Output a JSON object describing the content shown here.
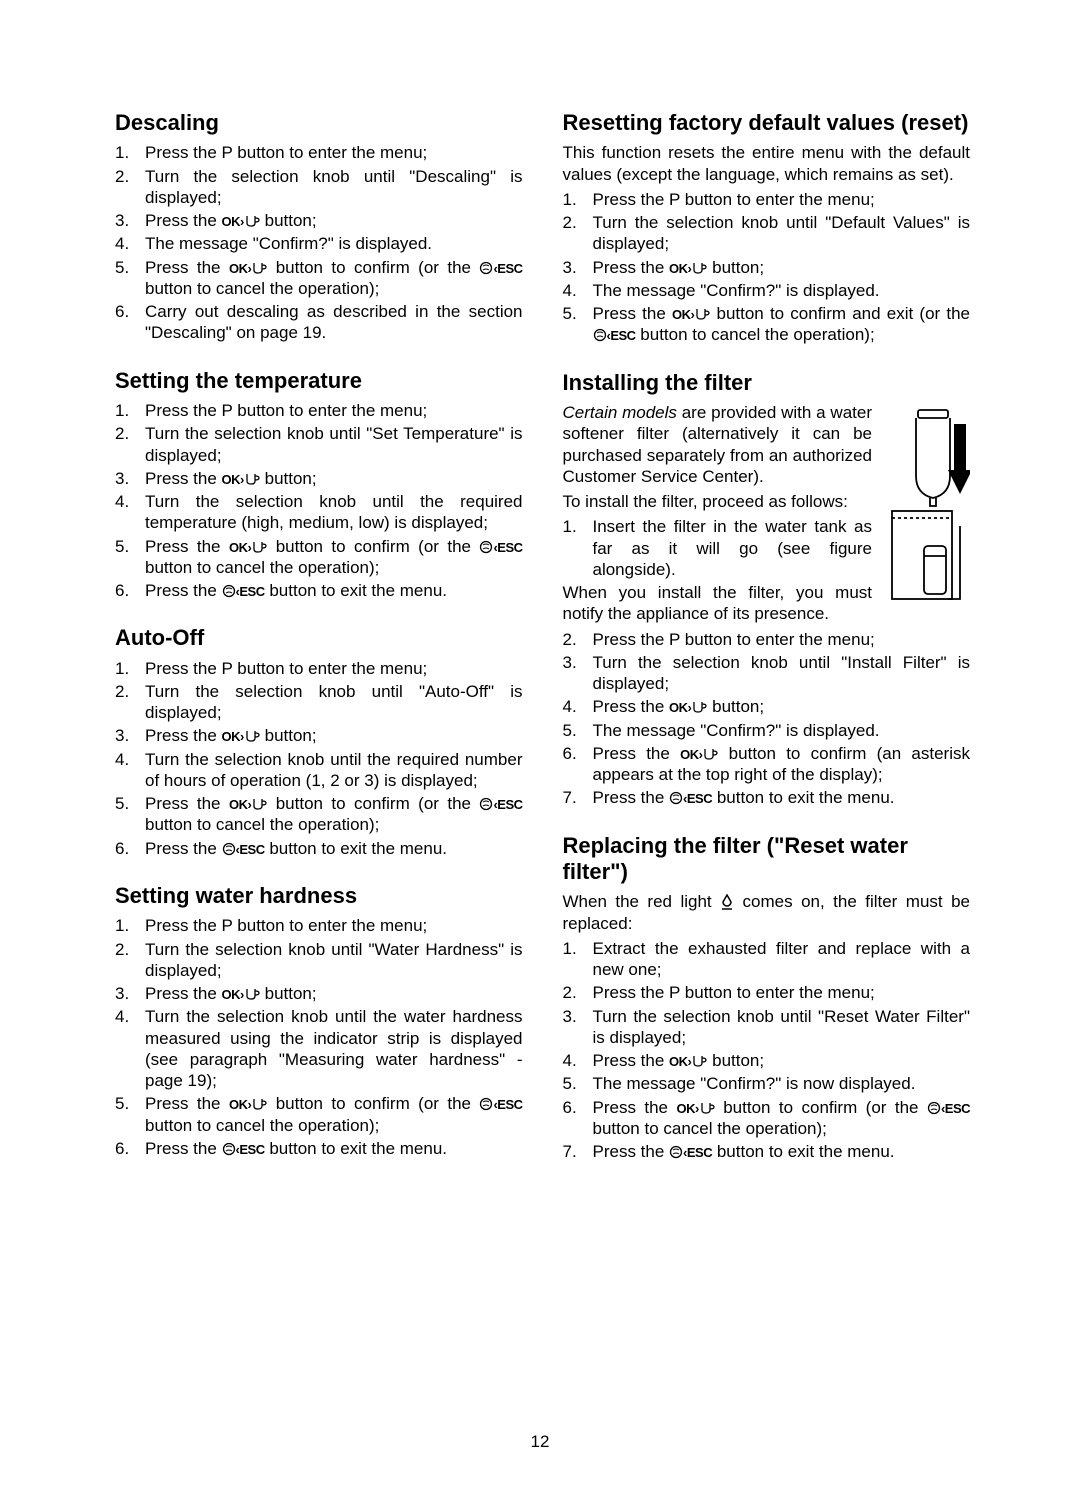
{
  "page_number": "12",
  "left": {
    "s1": {
      "title": "Descaling",
      "items": [
        "Press the P button to enter the menu;",
        "Turn the selection knob until \"Descaling\" is displayed;",
        "Press the {OK} button;",
        "The message \"Confirm?\" is displayed.",
        "Press the {OK} button to confirm (or the {ESC} button to cancel the operation);",
        "Carry out descaling as described in the section \"Descaling\" on page 19."
      ]
    },
    "s2": {
      "title": "Setting the temperature",
      "items": [
        "Press the P button to enter the menu;",
        "Turn the selection knob until \"Set Temperature\" is displayed;",
        "Press the {OK} button;",
        "Turn the selection knob until the required temperature (high, medium, low) is displayed;",
        "Press the {OK} button to confirm (or the {ESC} button to cancel the operation);",
        "Press the {ESC} button to exit the menu."
      ]
    },
    "s3": {
      "title": "Auto-Off",
      "items": [
        "Press the P button to enter the menu;",
        "Turn the selection knob until \"Auto-Off\" is displayed;",
        "Press the {OK} button;",
        "Turn the selection knob until the required number of hours of operation (1, 2 or 3) is displayed;",
        "Press the {OK} button to confirm (or the {ESC} button to cancel the operation);",
        "Press the {ESC} button to exit the menu."
      ]
    },
    "s4": {
      "title": "Setting water hardness",
      "items": [
        "Press the P button to enter the menu;",
        "Turn the selection knob until \"Water Hardness\" is displayed;",
        "Press the {OK} button;",
        "Turn the selection knob until the water hardness measured using the indicator strip is displayed (see paragraph \"Measuring water hardness\" - page 19);",
        "Press the {OK} button to confirm (or the {ESC} button to cancel the operation);",
        "Press the {ESC} button to exit the menu."
      ]
    }
  },
  "right": {
    "s1": {
      "title": "Resetting factory default values (reset)",
      "intro": "This function resets the entire menu with the default values (except the language, which remains as set).",
      "items": [
        "Press the P button to enter the menu;",
        "Turn the selection knob until \"Default Values\" is displayed;",
        "Press the {OK} button;",
        "The message \"Confirm?\" is displayed.",
        "Press the {OK} button to confirm and exit (or the {ESC} button to cancel the operation);"
      ]
    },
    "s2": {
      "title": "Installing the filter",
      "intro_italic": "Certain models",
      "intro_rest": " are provided with a water softener filter (alternatively it can be purchased separately from an authorized Customer Service Center).",
      "line2": "To install the filter, proceed as follows:",
      "items1": [
        "Insert the filter in the water tank as far as it will go (see figure alongside)."
      ],
      "mid": "When you install the filter, you must notify the appliance of its presence.",
      "items2": [
        "Press the P button to enter the menu;",
        "Turn the selection knob until \"Install Filter\" is displayed;",
        "Press the {OK} button;",
        "The message \"Confirm?\" is displayed.",
        "Press the {OK} button to confirm (an asterisk appears at the top right of the display);",
        "Press the {ESC} button to exit the menu."
      ]
    },
    "s3": {
      "title": "Replacing the filter (\"Reset water filter\")",
      "intro_a": "When the red light ",
      "intro_b": " comes on, the filter must be replaced:",
      "items": [
        "Extract the exhausted filter and replace with a new one;",
        "Press the P button to enter the menu;",
        "Turn the selection knob until \"Reset Water Filter\" is displayed;",
        "Press the {OK} button;",
        "The message \"Confirm?\" is now displayed.",
        "Press the {OK} button to confirm (or the {ESC} button to cancel the operation);",
        "Press the {ESC} button to exit the menu."
      ]
    }
  }
}
